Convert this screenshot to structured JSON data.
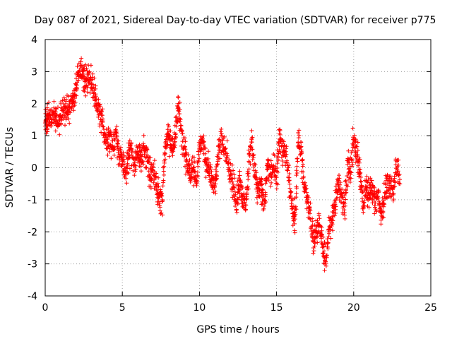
{
  "chart_data": {
    "type": "scatter",
    "title": "Day 087 of 2021, Sidereal Day-to-day VTEC variation (SDTVAR) for receiver p775",
    "xlabel": "GPS time / hours",
    "ylabel": "SDTVAR / TECUs",
    "xlim": [
      0,
      25
    ],
    "ylim": [
      -4,
      4
    ],
    "xticks": [
      "0",
      "5",
      "10",
      "15",
      "20",
      "25"
    ],
    "yticks": [
      "-4",
      "-3",
      "-2",
      "-1",
      "0",
      "1",
      "2",
      "3",
      "4"
    ],
    "grid": true,
    "marker": "+",
    "marker_color": "#ff0000",
    "series": [
      {
        "name": "SDTVAR",
        "x": [
          0.0,
          0.1,
          0.2,
          0.4,
          0.6,
          0.8,
          1.0,
          1.2,
          1.4,
          1.6,
          1.8,
          2.0,
          2.2,
          2.4,
          2.6,
          2.8,
          3.0,
          3.2,
          3.4,
          3.6,
          3.8,
          4.0,
          4.2,
          4.4,
          4.6,
          4.8,
          5.0,
          5.2,
          5.4,
          5.6,
          5.8,
          6.0,
          6.2,
          6.4,
          6.6,
          6.8,
          7.0,
          7.2,
          7.4,
          7.6,
          7.8,
          8.0,
          8.2,
          8.4,
          8.6,
          8.8,
          9.0,
          9.2,
          9.4,
          9.6,
          9.8,
          10.0,
          10.2,
          10.4,
          10.6,
          10.8,
          11.0,
          11.2,
          11.4,
          11.6,
          11.8,
          12.0,
          12.2,
          12.4,
          12.6,
          12.8,
          13.0,
          13.2,
          13.4,
          13.6,
          13.8,
          14.0,
          14.2,
          14.4,
          14.6,
          14.8,
          15.0,
          15.2,
          15.4,
          15.6,
          15.8,
          16.0,
          16.2,
          16.4,
          16.6,
          16.8,
          17.0,
          17.2,
          17.4,
          17.6,
          17.8,
          18.0,
          18.2,
          18.4,
          18.6,
          18.8,
          19.0,
          19.2,
          19.4,
          19.6,
          19.8,
          20.0,
          20.2,
          20.4,
          20.6,
          20.8,
          21.0,
          21.2,
          21.4,
          21.6,
          21.8,
          22.0,
          22.2,
          22.4,
          22.6,
          22.8,
          23.0
        ],
        "y": [
          1.3,
          1.5,
          1.6,
          1.5,
          1.7,
          1.4,
          1.6,
          1.8,
          1.7,
          1.9,
          2.2,
          2.6,
          2.9,
          3.0,
          2.7,
          2.9,
          2.6,
          2.2,
          1.8,
          1.7,
          1.2,
          0.8,
          1.0,
          0.6,
          1.1,
          0.4,
          0.2,
          -0.2,
          0.3,
          0.6,
          0.1,
          0.5,
          0.2,
          0.6,
          0.4,
          -0.2,
          0.0,
          -0.6,
          -0.9,
          -1.0,
          0.8,
          1.0,
          0.6,
          0.9,
          1.9,
          1.2,
          0.6,
          0.2,
          -0.3,
          0.0,
          -0.4,
          0.6,
          0.8,
          0.2,
          0.0,
          -0.4,
          -0.6,
          0.4,
          1.0,
          0.6,
          0.3,
          -0.2,
          -0.6,
          -1.3,
          -0.4,
          -0.9,
          -1.3,
          0.2,
          0.8,
          -0.2,
          -0.8,
          -0.5,
          -1.2,
          0.1,
          -0.2,
          0.0,
          -0.3,
          0.9,
          0.4,
          0.5,
          -0.4,
          -1.2,
          -1.6,
          0.8,
          0.5,
          -0.6,
          -1.0,
          -1.6,
          -2.2,
          -2.0,
          -1.8,
          -2.4,
          -3.0,
          -2.0,
          -1.6,
          -1.2,
          -0.4,
          -0.8,
          -1.4,
          0.1,
          -0.2,
          0.9,
          0.4,
          -0.2,
          -1.2,
          -0.7,
          -0.8,
          -0.6,
          -1.1,
          -0.7,
          -1.5,
          -0.9,
          -0.4,
          -0.6,
          -0.8,
          0.2,
          -0.5
        ]
      }
    ]
  }
}
